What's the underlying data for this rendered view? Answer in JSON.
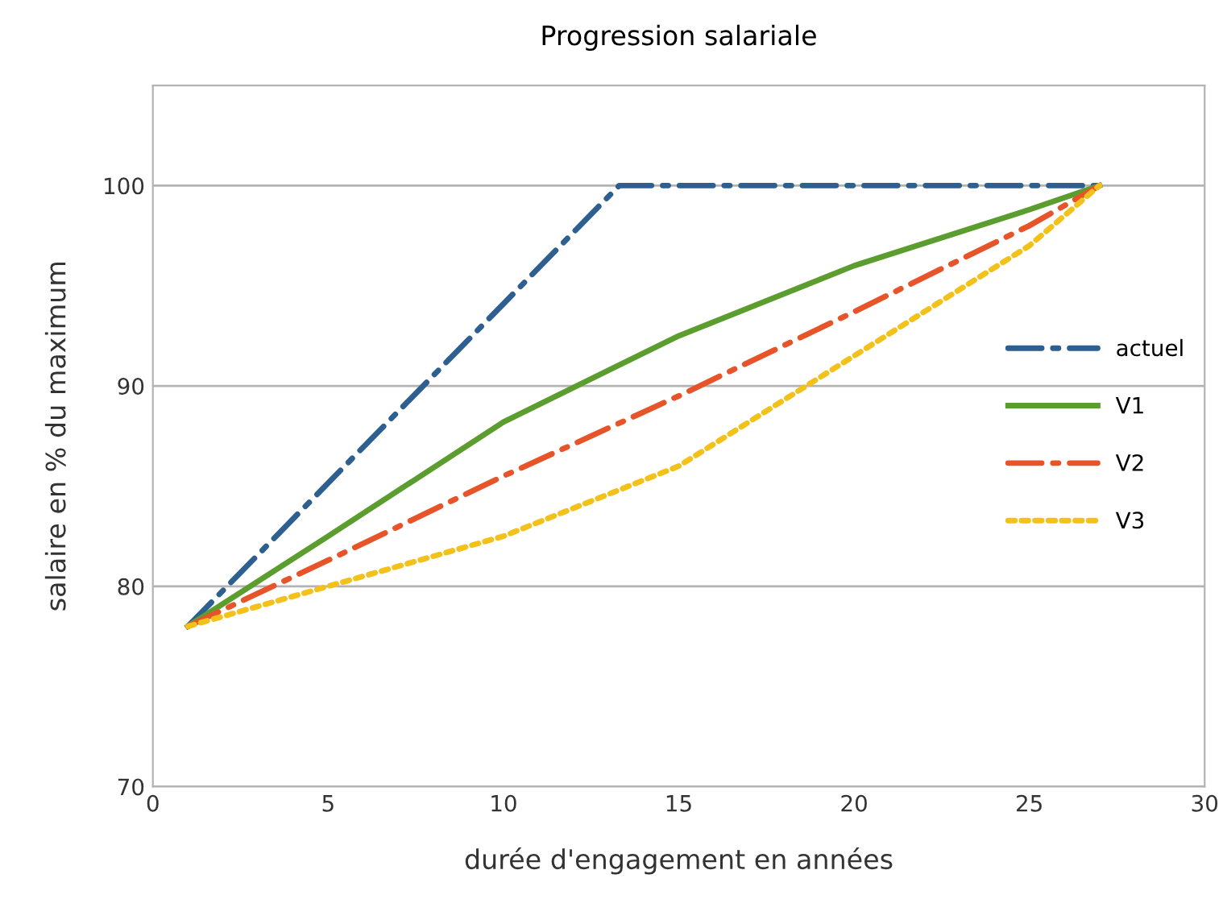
{
  "chart_data": {
    "type": "line",
    "title": "Progression salariale",
    "xlabel": "durée d'engagement en années",
    "ylabel": "salaire en % du maximum",
    "xlim": [
      0,
      30
    ],
    "xticks": [
      0,
      5,
      10,
      15,
      20,
      25,
      30
    ],
    "ylim": [
      70,
      105
    ],
    "yticks": [
      70,
      80,
      90,
      100
    ],
    "grid": "y",
    "legend": "right",
    "marker": "none",
    "series": [
      {
        "name": "actuel",
        "color": "#2e5f91",
        "line_style": "dashed",
        "x": [
          1,
          13.3,
          27
        ],
        "values": [
          78,
          100,
          100
        ]
      },
      {
        "name": "V1",
        "color": "#5b9e2f",
        "line_style": "solid",
        "x": [
          1,
          5,
          10,
          15,
          20,
          25,
          27
        ],
        "values": [
          78,
          82.5,
          88.2,
          92.5,
          96,
          98.8,
          100
        ]
      },
      {
        "name": "V2",
        "color": "#e8542a",
        "line_style": "dashed",
        "x": [
          1,
          5,
          10,
          15,
          20,
          25,
          27
        ],
        "values": [
          78,
          81.3,
          85.5,
          89.5,
          93.7,
          98,
          100
        ]
      },
      {
        "name": "V3",
        "color": "#f2c21a",
        "line_style": "dotted",
        "x": [
          1,
          5,
          10,
          15,
          20,
          25,
          27
        ],
        "values": [
          78,
          80,
          82.5,
          86,
          91.5,
          97,
          100
        ]
      }
    ]
  }
}
